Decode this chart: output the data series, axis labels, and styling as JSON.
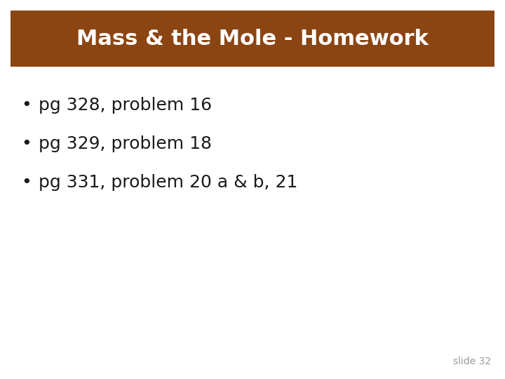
{
  "title": "Mass & the Mole - Homework",
  "title_bg_color": "#8B4513",
  "title_text_color": "#FFFFFF",
  "bg_color": "#FFFFFF",
  "bullet_items": [
    "pg 328, problem 16",
    "pg 329, problem 18",
    "pg 331, problem 20 a & b, 21"
  ],
  "bullet_color": "#1a1a1a",
  "bullet_font_size": 18,
  "title_font_size": 22,
  "slide_label": "slide 32",
  "slide_label_color": "#999999",
  "slide_label_font_size": 10
}
